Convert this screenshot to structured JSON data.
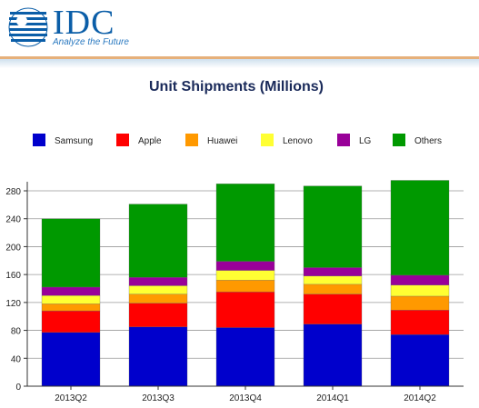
{
  "logo": {
    "word": "IDC",
    "tagline": "Analyze the Future"
  },
  "chart_data": {
    "type": "bar",
    "stacked": true,
    "title": "Unit Shipments (Millions)",
    "xlabel": "",
    "ylabel": "",
    "categories": [
      "2013Q2",
      "2013Q3",
      "2013Q4",
      "2014Q1",
      "2014Q2"
    ],
    "ylim": [
      0,
      280
    ],
    "yticks": [
      0,
      40,
      80,
      120,
      160,
      200,
      240,
      280
    ],
    "grid": true,
    "legend_position": "top",
    "series": [
      {
        "name": "Samsung",
        "color": "#0000cc",
        "values": [
          77,
          85,
          84,
          89,
          74
        ]
      },
      {
        "name": "Apple",
        "color": "#ff0000",
        "values": [
          31,
          34,
          51,
          43,
          35
        ]
      },
      {
        "name": "Huawei",
        "color": "#ff9900",
        "values": [
          10,
          13,
          17,
          14,
          20
        ]
      },
      {
        "name": "Lenovo",
        "color": "#ffff33",
        "values": [
          12,
          12,
          14,
          12,
          16
        ]
      },
      {
        "name": "LG",
        "color": "#990099",
        "values": [
          12,
          12,
          13,
          12,
          14
        ]
      },
      {
        "name": "Others",
        "color": "#009900",
        "values": [
          98,
          105,
          111,
          117,
          136
        ]
      }
    ]
  }
}
